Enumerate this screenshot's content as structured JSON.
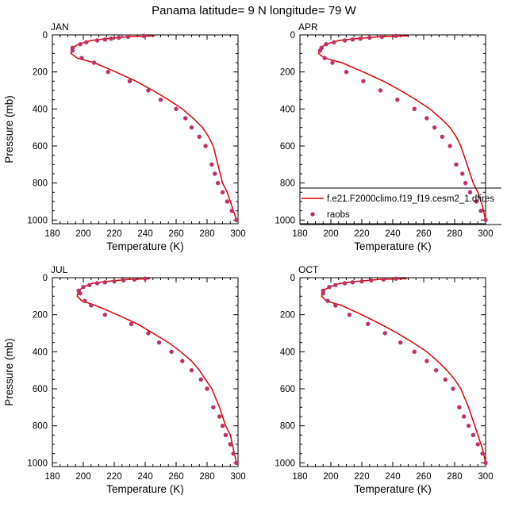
{
  "figure_title": "Panama  latitude= 9 N longitude= 79 W",
  "colors": {
    "model": "#e00000",
    "obs": "#c0306a"
  },
  "chart_data": [
    {
      "type": "line",
      "panel_label": "JAN",
      "xlabel": "Temperature (K)",
      "ylabel": "Pressure (mb)",
      "xlim": [
        180,
        300
      ],
      "ylim": [
        1020,
        0
      ],
      "xticks": [
        180,
        200,
        220,
        240,
        260,
        280,
        300
      ],
      "yticks": [
        0,
        200,
        400,
        600,
        800,
        1000
      ],
      "series": [
        {
          "name": "f.e21.F2000climo.f19_f19.cesm2_1.dfires",
          "style": "line",
          "x": [
            246,
            229,
            215,
            205,
            197,
            193,
            192,
            196,
            207,
            221,
            234,
            245,
            255,
            264,
            271,
            277,
            281,
            284,
            287,
            290,
            293,
            296,
            299
          ],
          "y": [
            5,
            10,
            20,
            30,
            50,
            70,
            100,
            125,
            150,
            200,
            250,
            300,
            350,
            400,
            450,
            500,
            550,
            600,
            700,
            800,
            850,
            925,
            1000
          ]
        },
        {
          "name": "raobs",
          "style": "markers",
          "x": [
            239,
            229,
            223,
            218,
            214,
            209,
            202,
            198,
            193,
            193,
            199,
            207,
            216,
            230,
            242,
            250,
            260,
            266,
            270,
            275,
            279,
            283,
            285,
            287,
            290,
            293,
            296,
            299
          ],
          "y": [
            5,
            10,
            15,
            20,
            25,
            30,
            40,
            50,
            70,
            85,
            125,
            150,
            200,
            250,
            300,
            350,
            400,
            450,
            500,
            550,
            600,
            700,
            750,
            800,
            850,
            900,
            950,
            1000
          ]
        }
      ]
    },
    {
      "type": "line",
      "panel_label": "APR",
      "xlabel": "Temperature (K)",
      "ylabel": "",
      "xlim": [
        180,
        300
      ],
      "ylim": [
        1020,
        0
      ],
      "xticks": [
        180,
        200,
        220,
        240,
        260,
        280,
        300
      ],
      "yticks": [
        0,
        200,
        400,
        600,
        800,
        1000
      ],
      "legend": {
        "placement": "bottom-right",
        "entries": [
          "f.e21.F2000climo.f19_f19.cesm2_1.dfires",
          "raobs"
        ]
      },
      "series": [
        {
          "name": "f.e21.F2000climo.f19_f19.cesm2_1.dfires",
          "style": "line",
          "x": [
            250,
            232,
            216,
            205,
            197,
            193,
            192,
            196,
            207,
            221,
            234,
            245,
            255,
            264,
            271,
            277,
            281,
            284,
            288,
            292,
            295,
            298,
            300
          ],
          "y": [
            5,
            10,
            20,
            30,
            50,
            70,
            100,
            125,
            150,
            200,
            250,
            300,
            350,
            400,
            450,
            500,
            550,
            600,
            700,
            800,
            850,
            925,
            1000
          ]
        },
        {
          "name": "raobs",
          "style": "markers",
          "x": [
            242,
            233,
            225,
            219,
            214,
            209,
            202,
            197,
            194,
            193,
            196,
            201,
            210,
            221,
            232,
            243,
            254,
            262,
            267,
            272,
            277,
            281,
            285,
            287,
            290,
            294,
            297,
            300
          ],
          "y": [
            5,
            10,
            15,
            20,
            25,
            30,
            40,
            50,
            70,
            85,
            125,
            150,
            200,
            250,
            300,
            350,
            400,
            450,
            500,
            550,
            600,
            700,
            750,
            800,
            850,
            900,
            950,
            1000
          ]
        }
      ]
    },
    {
      "type": "line",
      "panel_label": "JUL",
      "xlabel": "Temperature (K)",
      "ylabel": "Pressure (mb)",
      "xlim": [
        180,
        300
      ],
      "ylim": [
        1020,
        0
      ],
      "xticks": [
        180,
        200,
        220,
        240,
        260,
        280,
        300
      ],
      "yticks": [
        0,
        200,
        400,
        600,
        800,
        1000
      ],
      "series": [
        {
          "name": "f.e21.F2000climo.f19_f19.cesm2_1.dfires",
          "style": "line",
          "x": [
            243,
            228,
            215,
            206,
            200,
            197,
            196,
            199,
            208,
            222,
            235,
            245,
            255,
            263,
            270,
            275,
            279,
            283,
            288,
            292,
            295,
            297,
            299
          ],
          "y": [
            5,
            10,
            20,
            30,
            50,
            70,
            100,
            125,
            150,
            200,
            250,
            300,
            350,
            400,
            450,
            500,
            550,
            600,
            700,
            800,
            850,
            925,
            1000
          ]
        },
        {
          "name": "raobs",
          "style": "markers",
          "x": [
            240,
            233,
            226,
            220,
            214,
            209,
            204,
            200,
            197,
            198,
            201,
            205,
            214,
            231,
            242,
            249,
            257,
            264,
            270,
            276,
            280,
            284,
            288,
            290,
            292,
            295,
            297,
            299
          ],
          "y": [
            5,
            10,
            15,
            20,
            25,
            30,
            40,
            50,
            70,
            85,
            125,
            150,
            200,
            250,
            300,
            350,
            400,
            450,
            500,
            550,
            600,
            700,
            750,
            800,
            850,
            900,
            950,
            1000
          ]
        }
      ]
    },
    {
      "type": "line",
      "panel_label": "OCT",
      "xlabel": "Temperature (K)",
      "ylabel": "",
      "xlim": [
        180,
        300
      ],
      "ylim": [
        1020,
        0
      ],
      "xticks": [
        180,
        200,
        220,
        240,
        260,
        280,
        300
      ],
      "yticks": [
        0,
        200,
        400,
        600,
        800,
        1000
      ],
      "series": [
        {
          "name": "f.e21.F2000climo.f19_f19.cesm2_1.dfires",
          "style": "line",
          "x": [
            249,
            231,
            216,
            206,
            199,
            195,
            194,
            197,
            207,
            220,
            232,
            243,
            253,
            262,
            269,
            275,
            280,
            284,
            289,
            293,
            295,
            298,
            300
          ],
          "y": [
            5,
            10,
            20,
            30,
            50,
            70,
            100,
            125,
            150,
            200,
            250,
            300,
            350,
            400,
            450,
            500,
            550,
            600,
            700,
            800,
            850,
            925,
            1000
          ]
        },
        {
          "name": "raobs",
          "style": "markers",
          "x": [
            242,
            234,
            226,
            220,
            214,
            209,
            203,
            199,
            195,
            195,
            198,
            203,
            212,
            224,
            235,
            245,
            254,
            262,
            268,
            274,
            279,
            283,
            286,
            289,
            292,
            295,
            298,
            300
          ],
          "y": [
            5,
            10,
            15,
            20,
            25,
            30,
            40,
            50,
            70,
            85,
            125,
            150,
            200,
            250,
            300,
            350,
            400,
            450,
            500,
            550,
            600,
            700,
            750,
            800,
            850,
            900,
            950,
            1000
          ]
        }
      ]
    }
  ]
}
